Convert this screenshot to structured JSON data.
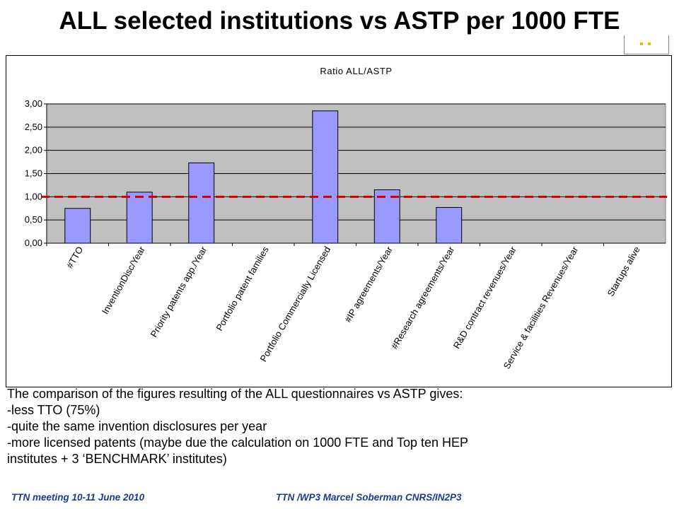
{
  "slide": {
    "title": "ALL selected institutions vs ASTP per 1000 FTE"
  },
  "chart_data": {
    "type": "bar",
    "title": "Ratio ALL/ASTP",
    "categories": [
      "#TTO",
      "InventionDisc/Year",
      "Priority patents app./Year",
      "Portfolio patent families",
      "Portfolio Commercially Licensed",
      "#IP agreements/Year",
      "#Research agreements/Year",
      "R&D contract revenues/Year",
      "Service & facilities Revenues/Year",
      "Startups alive"
    ],
    "values": [
      0.75,
      1.1,
      1.73,
      null,
      2.85,
      1.15,
      0.77,
      null,
      null,
      null
    ],
    "ylim": [
      0,
      3
    ],
    "yticks": [
      "0,00",
      "0,50",
      "1,00",
      "1,50",
      "2,00",
      "2,50",
      "3,00"
    ],
    "reference_line": {
      "value": 1.0,
      "color": "#cc0000",
      "style": "dashed"
    },
    "grid": true,
    "bar_color": "#9999ff",
    "plot_background": "#c0c0c0",
    "xlabel": "",
    "ylabel": ""
  },
  "body": {
    "lines": [
      "The comparison of the figures resulting of the ALL questionnaires  vs ASTP gives:",
      "-less TTO (75%)",
      "-quite the same invention disclosures per year",
      "-more licensed patents (maybe due the calculation on 1000 FTE and Top ten HEP",
      "institutes +  3 ‘BENCHMARK’ institutes)"
    ]
  },
  "footer": {
    "left": "TTN meeting 10-11 June 2010",
    "right": "TTN /WP3 Marcel Soberman CNRS/IN2P3"
  },
  "colors": {
    "footer_text": "#1f3a8a",
    "logo_accent": "#e6b800"
  }
}
